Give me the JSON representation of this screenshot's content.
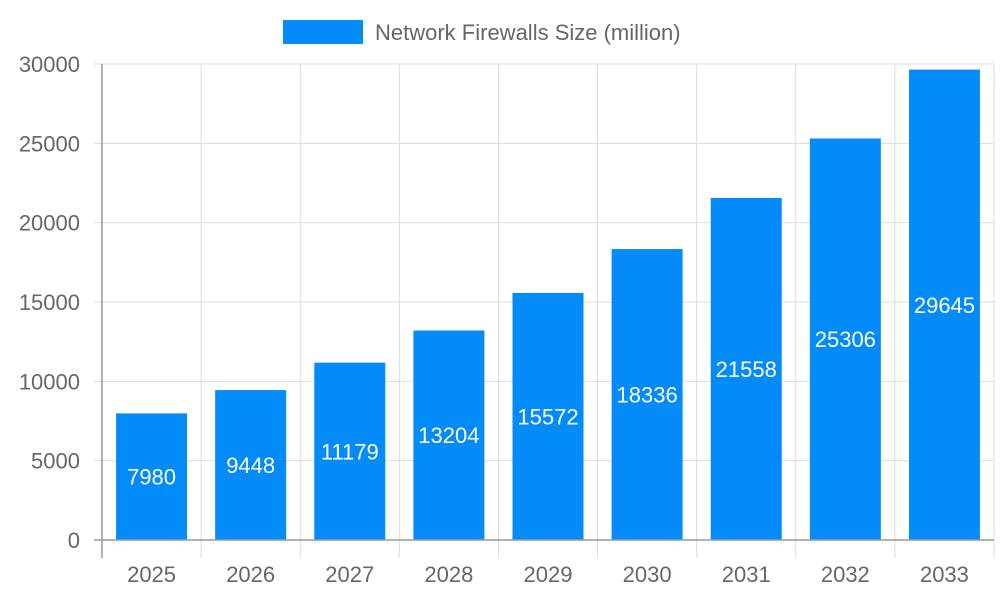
{
  "chart_data": {
    "type": "bar",
    "categories": [
      "2025",
      "2026",
      "2027",
      "2028",
      "2029",
      "2030",
      "2031",
      "2032",
      "2033"
    ],
    "series": [
      {
        "name": "Network Firewalls Size (million)",
        "values": [
          7980,
          9448,
          11179,
          13204,
          15572,
          18336,
          21558,
          25306,
          29645
        ],
        "color": "#038bfa"
      }
    ],
    "title": "",
    "xlabel": "",
    "ylabel": "",
    "ylim": [
      0,
      30000
    ],
    "yticks": [
      "0",
      "5000",
      "10000",
      "15000",
      "20000",
      "25000",
      "30000"
    ],
    "grid": true,
    "legend_position": "top",
    "data_labels": true
  }
}
